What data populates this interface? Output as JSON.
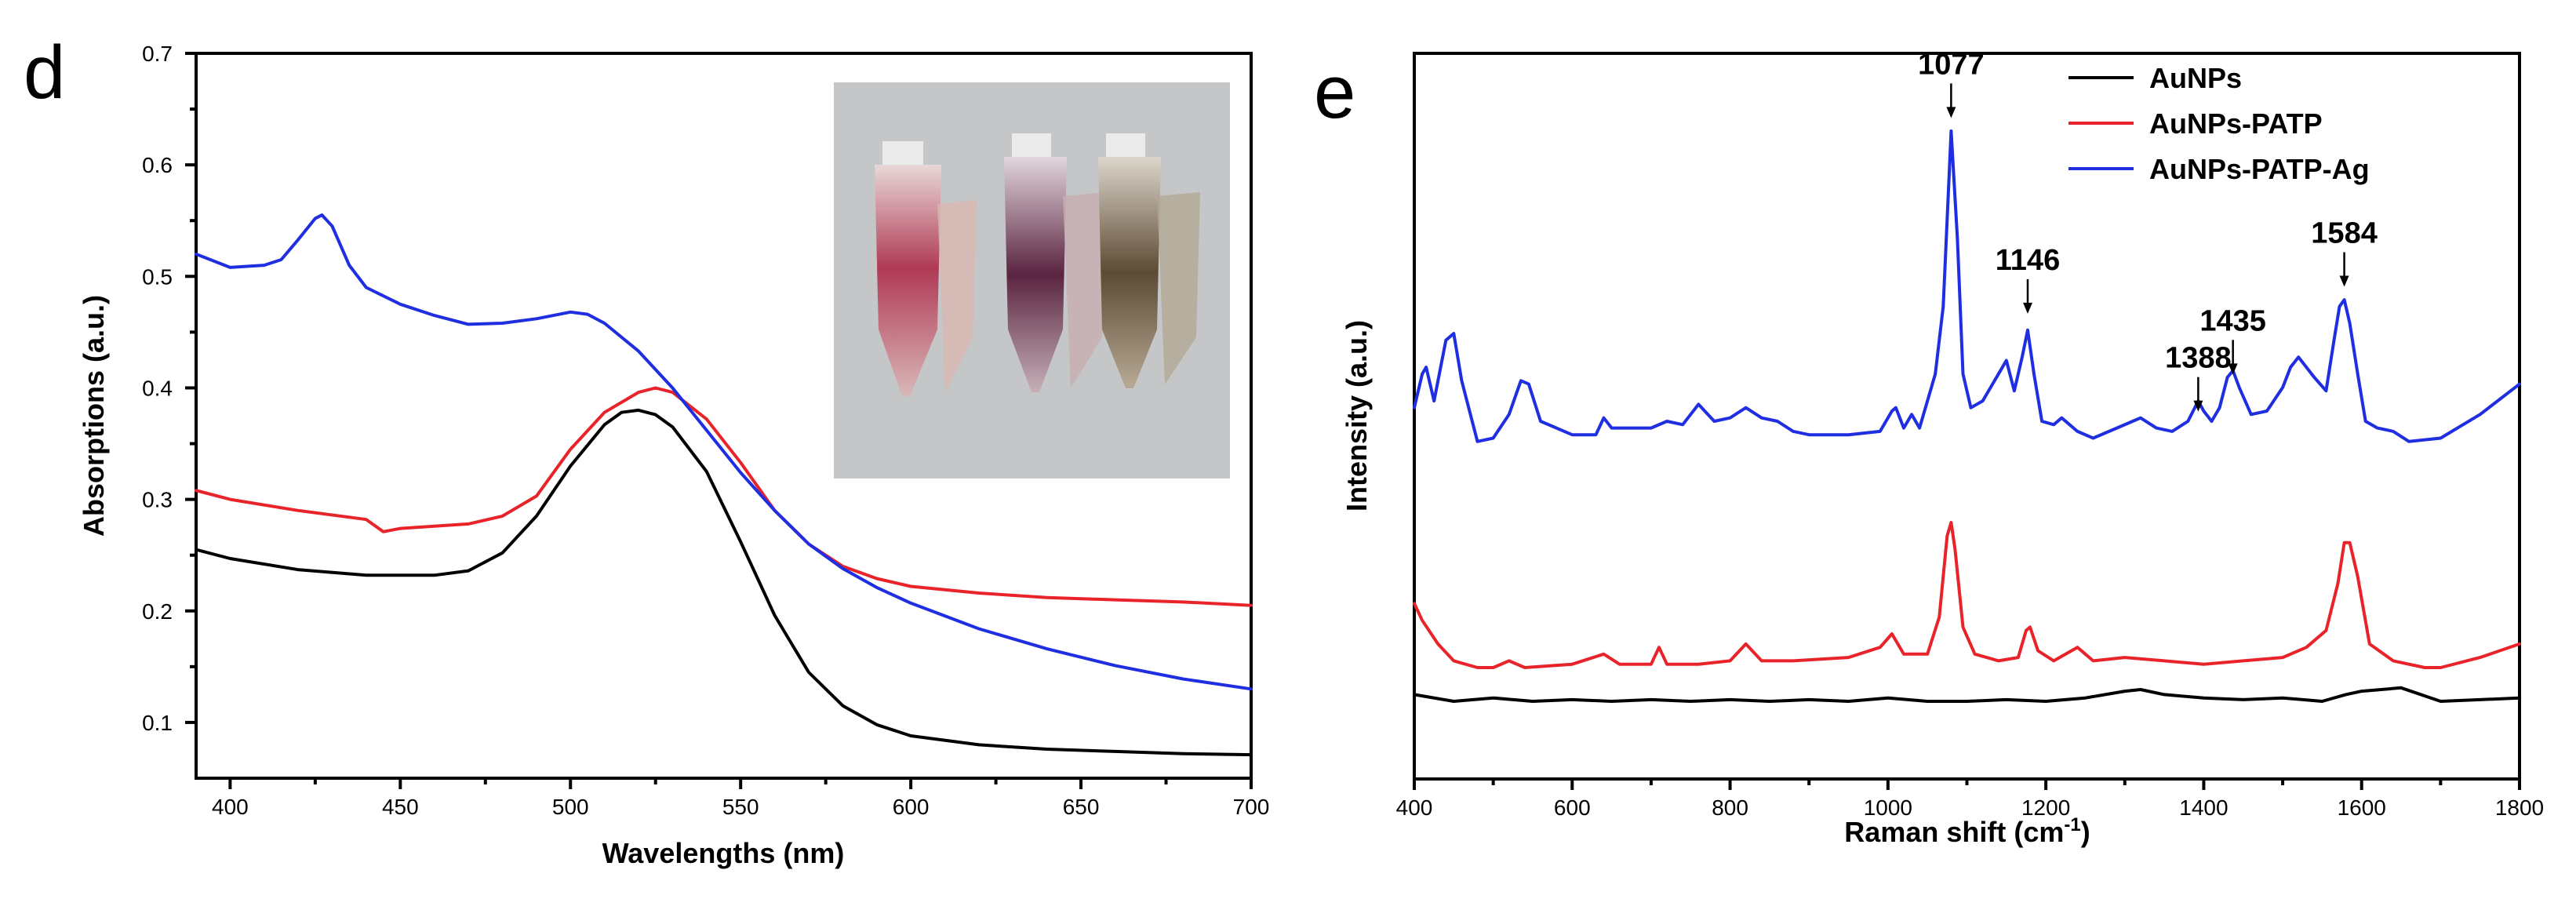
{
  "chart_data": [
    {
      "panel": "d",
      "type": "line",
      "xlabel": "Wavelengths (nm)",
      "ylabel": "Absorptions (a.u.)",
      "xlim": [
        390,
        700
      ],
      "ylim": [
        0.05,
        0.7
      ],
      "xticks": [
        400,
        450,
        500,
        550,
        600,
        650,
        700
      ],
      "yticks": [
        0.1,
        0.2,
        0.3,
        0.4,
        0.5,
        0.6,
        0.7
      ],
      "inset": "photo of three sample tubes: red, purple, brown",
      "series": [
        {
          "name": "AuNPs",
          "color": "#000000",
          "x": [
            390,
            400,
            420,
            440,
            460,
            470,
            480,
            490,
            500,
            510,
            515,
            520,
            525,
            530,
            540,
            550,
            560,
            570,
            580,
            590,
            600,
            620,
            640,
            660,
            680,
            700
          ],
          "y": [
            0.255,
            0.247,
            0.237,
            0.232,
            0.232,
            0.236,
            0.252,
            0.285,
            0.33,
            0.367,
            0.378,
            0.38,
            0.376,
            0.365,
            0.325,
            0.262,
            0.196,
            0.145,
            0.115,
            0.098,
            0.088,
            0.08,
            0.076,
            0.074,
            0.072,
            0.071
          ]
        },
        {
          "name": "AuNPs-PATP",
          "color": "#e8232a",
          "x": [
            390,
            400,
            420,
            440,
            445,
            450,
            460,
            470,
            480,
            490,
            500,
            510,
            520,
            525,
            530,
            540,
            550,
            560,
            570,
            580,
            590,
            600,
            620,
            640,
            660,
            680,
            700
          ],
          "y": [
            0.308,
            0.3,
            0.29,
            0.282,
            0.271,
            0.274,
            0.276,
            0.278,
            0.285,
            0.303,
            0.345,
            0.378,
            0.396,
            0.4,
            0.396,
            0.372,
            0.333,
            0.29,
            0.26,
            0.24,
            0.229,
            0.222,
            0.216,
            0.212,
            0.21,
            0.208,
            0.205
          ]
        },
        {
          "name": "AuNPs-PATP-Ag",
          "color": "#1f2ee0",
          "x": [
            390,
            400,
            410,
            415,
            420,
            425,
            427,
            430,
            435,
            440,
            450,
            460,
            470,
            480,
            490,
            500,
            505,
            510,
            520,
            530,
            540,
            550,
            560,
            570,
            580,
            590,
            600,
            620,
            640,
            660,
            680,
            700
          ],
          "y": [
            0.52,
            0.508,
            0.51,
            0.515,
            0.533,
            0.552,
            0.555,
            0.545,
            0.51,
            0.49,
            0.475,
            0.465,
            0.457,
            0.458,
            0.462,
            0.468,
            0.466,
            0.458,
            0.433,
            0.4,
            0.362,
            0.324,
            0.29,
            0.26,
            0.238,
            0.221,
            0.207,
            0.184,
            0.166,
            0.151,
            0.139,
            0.13
          ]
        }
      ]
    },
    {
      "panel": "e",
      "type": "line",
      "xlabel": "Raman shift (cm",
      "xlabel_sup": "-1",
      "xlabel_end": ")",
      "ylabel": "Intensity (a.u.)",
      "xlim": [
        400,
        1800
      ],
      "xticks": [
        400,
        600,
        800,
        1000,
        1200,
        1400,
        1600,
        1800
      ],
      "legend": [
        "AuNPs",
        "AuNPs-PATP",
        "AuNPs-PATP-Ag"
      ],
      "peaks": [
        {
          "label": "1077",
          "x": 1080,
          "y": 1.74
        },
        {
          "label": "1146",
          "x": 1177,
          "y": 1.16
        },
        {
          "label": "1388",
          "x": 1393,
          "y": 0.87
        },
        {
          "label": "1435",
          "x": 1437,
          "y": 0.98
        },
        {
          "label": "1584",
          "x": 1578,
          "y": 1.24
        }
      ],
      "series": [
        {
          "name": "AuNPs",
          "color": "#000000",
          "x": [
            400,
            450,
            500,
            550,
            600,
            650,
            700,
            750,
            800,
            850,
            900,
            950,
            1000,
            1050,
            1100,
            1150,
            1200,
            1250,
            1300,
            1320,
            1350,
            1400,
            1450,
            1500,
            1550,
            1580,
            1600,
            1650,
            1700,
            1750,
            1800
          ],
          "y": [
            0.05,
            0.03,
            0.04,
            0.03,
            0.035,
            0.03,
            0.035,
            0.03,
            0.035,
            0.03,
            0.035,
            0.03,
            0.04,
            0.03,
            0.03,
            0.035,
            0.03,
            0.04,
            0.06,
            0.065,
            0.05,
            0.04,
            0.035,
            0.04,
            0.03,
            0.05,
            0.06,
            0.07,
            0.03,
            0.035,
            0.04
          ]
        },
        {
          "name": "AuNPs-PATP",
          "color": "#e8232a",
          "x": [
            400,
            410,
            430,
            450,
            480,
            500,
            520,
            540,
            600,
            640,
            660,
            700,
            710,
            720,
            760,
            800,
            820,
            840,
            880,
            950,
            990,
            1005,
            1020,
            1050,
            1065,
            1075,
            1080,
            1085,
            1095,
            1110,
            1140,
            1165,
            1175,
            1180,
            1190,
            1210,
            1240,
            1260,
            1300,
            1350,
            1400,
            1450,
            1500,
            1530,
            1555,
            1570,
            1578,
            1585,
            1595,
            1610,
            1640,
            1680,
            1700,
            1750,
            1800
          ],
          "y": [
            0.32,
            0.27,
            0.2,
            0.15,
            0.13,
            0.13,
            0.15,
            0.13,
            0.14,
            0.17,
            0.14,
            0.14,
            0.19,
            0.14,
            0.14,
            0.15,
            0.2,
            0.15,
            0.15,
            0.16,
            0.19,
            0.23,
            0.17,
            0.17,
            0.28,
            0.52,
            0.56,
            0.48,
            0.25,
            0.17,
            0.15,
            0.16,
            0.24,
            0.25,
            0.18,
            0.15,
            0.19,
            0.15,
            0.16,
            0.15,
            0.14,
            0.15,
            0.16,
            0.19,
            0.24,
            0.38,
            0.5,
            0.5,
            0.4,
            0.2,
            0.15,
            0.13,
            0.13,
            0.16,
            0.2
          ]
        },
        {
          "name": "AuNPs-PATP-Ag",
          "color": "#1f2ee0",
          "x": [
            400,
            410,
            415,
            425,
            440,
            450,
            460,
            480,
            500,
            520,
            535,
            545,
            560,
            600,
            630,
            640,
            650,
            700,
            720,
            740,
            760,
            780,
            800,
            820,
            840,
            860,
            880,
            900,
            950,
            990,
            1005,
            1010,
            1020,
            1030,
            1040,
            1050,
            1060,
            1070,
            1080,
            1088,
            1095,
            1105,
            1120,
            1140,
            1150,
            1160,
            1170,
            1177,
            1185,
            1195,
            1210,
            1220,
            1240,
            1260,
            1290,
            1310,
            1320,
            1340,
            1360,
            1380,
            1393,
            1400,
            1410,
            1420,
            1430,
            1437,
            1445,
            1460,
            1480,
            1500,
            1510,
            1520,
            1540,
            1555,
            1565,
            1572,
            1578,
            1585,
            1595,
            1605,
            1620,
            1640,
            1660,
            1700,
            1750,
            1800
          ],
          "y": [
            0.9,
            1.0,
            1.02,
            0.92,
            1.1,
            1.12,
            0.98,
            0.8,
            0.81,
            0.88,
            0.98,
            0.97,
            0.86,
            0.82,
            0.82,
            0.87,
            0.84,
            0.84,
            0.86,
            0.85,
            0.91,
            0.86,
            0.87,
            0.9,
            0.87,
            0.86,
            0.83,
            0.82,
            0.82,
            0.83,
            0.89,
            0.9,
            0.84,
            0.88,
            0.84,
            0.92,
            1.0,
            1.2,
            1.72,
            1.4,
            1.0,
            0.9,
            0.92,
            1.0,
            1.04,
            0.95,
            1.05,
            1.13,
            1.0,
            0.86,
            0.85,
            0.87,
            0.83,
            0.81,
            0.84,
            0.86,
            0.87,
            0.84,
            0.83,
            0.86,
            0.92,
            0.89,
            0.86,
            0.9,
            0.99,
            1.01,
            0.96,
            0.88,
            0.89,
            0.96,
            1.02,
            1.05,
            0.99,
            0.95,
            1.1,
            1.2,
            1.22,
            1.15,
            1.0,
            0.86,
            0.84,
            0.83,
            0.8,
            0.81,
            0.88,
            0.97
          ]
        }
      ]
    }
  ],
  "panel_labels": {
    "d": "d",
    "e": "e"
  }
}
